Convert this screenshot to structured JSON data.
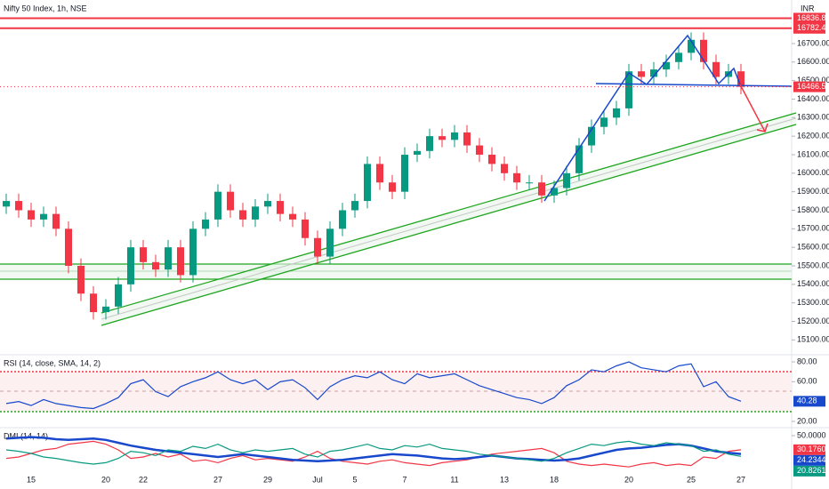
{
  "header": {
    "title": "Nifty 50 Index, 1h, NSE",
    "currency": "INR"
  },
  "chart_data": [
    {
      "type": "candlestick",
      "categories": [
        null,
        null,
        "15",
        null,
        null,
        null,
        null,
        null,
        "20",
        null,
        null,
        "22",
        null,
        null,
        null,
        null,
        null,
        "27",
        null,
        null,
        null,
        "29",
        null,
        null,
        null,
        "Jul",
        null,
        null,
        "5",
        null,
        null,
        null,
        "7",
        null,
        null,
        null,
        "11",
        null,
        null,
        null,
        "13",
        null,
        null,
        null,
        "18",
        null,
        null,
        null,
        null,
        null,
        "20",
        null,
        null,
        null,
        null,
        "25",
        null,
        null,
        null,
        "27"
      ],
      "open": [
        15820,
        15850,
        15800,
        15750,
        15780,
        15700,
        15500,
        15350,
        15250,
        15280,
        15400,
        15600,
        15520,
        15480,
        15600,
        15450,
        15700,
        15750,
        15900,
        15800,
        15750,
        15820,
        15850,
        15780,
        15750,
        15650,
        15550,
        15700,
        15800,
        15850,
        16050,
        15950,
        15900,
        16100,
        16120,
        16200,
        16180,
        16220,
        16150,
        16100,
        16050,
        16000,
        15950,
        15950,
        15880,
        15920,
        16000,
        16150,
        16250,
        16300,
        16350,
        16550,
        16520,
        16560,
        16600,
        16650,
        16720,
        16600,
        16520,
        16550
      ],
      "high": [
        15890,
        15890,
        15840,
        15820,
        15820,
        15740,
        15540,
        15390,
        15320,
        15440,
        15640,
        15640,
        15560,
        15640,
        15640,
        15740,
        15790,
        15940,
        15940,
        15840,
        15860,
        15890,
        15890,
        15820,
        15790,
        15690,
        15740,
        15840,
        15890,
        16090,
        16090,
        15990,
        16140,
        16160,
        16240,
        16240,
        16260,
        16260,
        16190,
        16140,
        16090,
        16040,
        15990,
        15990,
        15960,
        16040,
        16190,
        16290,
        16340,
        16390,
        16590,
        16590,
        16600,
        16640,
        16690,
        16760,
        16760,
        16640,
        16590,
        16590
      ],
      "low": [
        15780,
        15760,
        15710,
        15710,
        15660,
        15460,
        15310,
        15210,
        15210,
        15240,
        15360,
        15480,
        15440,
        15440,
        15410,
        15410,
        15660,
        15710,
        15760,
        15710,
        15710,
        15780,
        15740,
        15710,
        15610,
        15510,
        15510,
        15660,
        15760,
        15810,
        15910,
        15860,
        15860,
        16060,
        16080,
        16140,
        16140,
        16110,
        16060,
        16010,
        15960,
        15910,
        15910,
        15840,
        15840,
        15880,
        15960,
        16110,
        16210,
        16260,
        16310,
        16480,
        16480,
        16520,
        16560,
        16610,
        16560,
        16480,
        16480,
        16426.55
      ],
      "close": [
        15850,
        15800,
        15750,
        15780,
        15700,
        15500,
        15350,
        15250,
        15280,
        15400,
        15600,
        15520,
        15480,
        15600,
        15450,
        15700,
        15750,
        15900,
        15800,
        15750,
        15820,
        15850,
        15780,
        15750,
        15650,
        15550,
        15700,
        15800,
        15850,
        16050,
        15950,
        15900,
        16100,
        16120,
        16200,
        16180,
        16220,
        16150,
        16100,
        16050,
        16000,
        15950,
        15950,
        15880,
        15920,
        16000,
        16150,
        16250,
        16300,
        16350,
        16550,
        16520,
        16560,
        16600,
        16650,
        16720,
        16600,
        16520,
        16550,
        16466.55
      ],
      "up_color": "#089981",
      "down_color": "#f23645",
      "ylim": [
        15020,
        16935
      ],
      "yticks": [
        {
          "value": 15100,
          "label": "15100.00"
        },
        {
          "value": 15200,
          "label": "15200.00"
        },
        {
          "value": 15300,
          "label": "15300.00"
        },
        {
          "value": 15400,
          "label": "15400.00"
        },
        {
          "value": 15500,
          "label": "15500.00"
        },
        {
          "value": 15600,
          "label": "15600.00"
        },
        {
          "value": 15700,
          "label": "15700.00"
        },
        {
          "value": 15800,
          "label": "15800.00"
        },
        {
          "value": 15900,
          "label": "15900.00"
        },
        {
          "value": 16000,
          "label": "16000.00"
        },
        {
          "value": 16100,
          "label": "16100.00"
        },
        {
          "value": 16200,
          "label": "16200.00"
        },
        {
          "value": 16300,
          "label": "16300.00"
        },
        {
          "value": 16400,
          "label": "16400.00"
        },
        {
          "value": 16500,
          "label": "16500.00"
        },
        {
          "value": 16600,
          "label": "16600.00"
        },
        {
          "value": 16700,
          "label": "16700.00"
        }
      ],
      "levels": [
        {
          "value": 16836.8,
          "label": "16836.80"
        },
        {
          "value": 16782.4,
          "label": "16782.40"
        }
      ]
    },
    {
      "type": "line",
      "title": "RSI (14, close, SMA, 14, 2)",
      "color": "#1848cc",
      "values": [
        38,
        40,
        36,
        42,
        38,
        36,
        34,
        33,
        38,
        44,
        58,
        62,
        50,
        45,
        55,
        60,
        64,
        70,
        62,
        58,
        62,
        52,
        60,
        62,
        54,
        42,
        55,
        62,
        66,
        64,
        70,
        62,
        58,
        68,
        64,
        66,
        68,
        62,
        56,
        52,
        48,
        44,
        42,
        38,
        44,
        56,
        62,
        72,
        70,
        76,
        80,
        74,
        72,
        70,
        76,
        78,
        55,
        60,
        45,
        40.28
      ],
      "ylim": [
        16.4,
        86.3
      ],
      "yticks": [
        {
          "value": 80,
          "label": "80.00"
        },
        {
          "value": 60,
          "label": "60.00"
        },
        {
          "value": 20,
          "label": "20.00"
        }
      ]
    },
    {
      "type": "line",
      "title": "DMI (14, 14)",
      "series": [
        {
          "color": "#f23645",
          "values": [
            18,
            20,
            25,
            30,
            32,
            38,
            40,
            42,
            38,
            30,
            18,
            20,
            25,
            20,
            24,
            14,
            16,
            12,
            18,
            22,
            16,
            18,
            16,
            14,
            20,
            28,
            18,
            14,
            12,
            10,
            14,
            16,
            12,
            10,
            8,
            12,
            14,
            16,
            20,
            24,
            26,
            28,
            30,
            32,
            26,
            14,
            10,
            8,
            10,
            8,
            6,
            10,
            12,
            8,
            10,
            8,
            20,
            18,
            28,
            30.176
          ],
          "value_labels": [
            null,
            null,
            null,
            null,
            null,
            null,
            null,
            null,
            null,
            null,
            null,
            null,
            null,
            null,
            null,
            null,
            null,
            null,
            null,
            null,
            null,
            null,
            null,
            null,
            null,
            null,
            null,
            null,
            null,
            null,
            null,
            null,
            null,
            null,
            null,
            null,
            null,
            null,
            null,
            null,
            null,
            null,
            null,
            null,
            null,
            null,
            null,
            null,
            null,
            null,
            null,
            null,
            null,
            null,
            null,
            null,
            null,
            null,
            null,
            "30.1760"
          ]
        },
        {
          "color": "#1848cc",
          "values": [
            46,
            47,
            48,
            47,
            45,
            44,
            45,
            46,
            44,
            40,
            36,
            33,
            30,
            28,
            26,
            24,
            22,
            20,
            22,
            24,
            22,
            20,
            18,
            16,
            15,
            14,
            15,
            16,
            18,
            20,
            22,
            24,
            23,
            22,
            20,
            18,
            17,
            18,
            20,
            22,
            20,
            18,
            17,
            16,
            15,
            16,
            18,
            22,
            26,
            30,
            32,
            33,
            35,
            37,
            38,
            36,
            32,
            28,
            26,
            24.2344
          ]
        },
        {
          "color": "#089981",
          "values": [
            30,
            28,
            25,
            20,
            18,
            15,
            12,
            10,
            12,
            18,
            28,
            26,
            22,
            30,
            28,
            35,
            32,
            38,
            30,
            26,
            30,
            28,
            30,
            32,
            24,
            20,
            28,
            30,
            34,
            38,
            32,
            30,
            36,
            34,
            38,
            32,
            30,
            28,
            24,
            22,
            20,
            18,
            16,
            14,
            18,
            26,
            32,
            38,
            36,
            40,
            42,
            38,
            36,
            40,
            38,
            36,
            28,
            30,
            24,
            20.8261
          ]
        }
      ],
      "ylim": [
        0,
        60
      ],
      "yticks": [
        {
          "value": 50,
          "label": "50.0000"
        }
      ]
    }
  ]
}
